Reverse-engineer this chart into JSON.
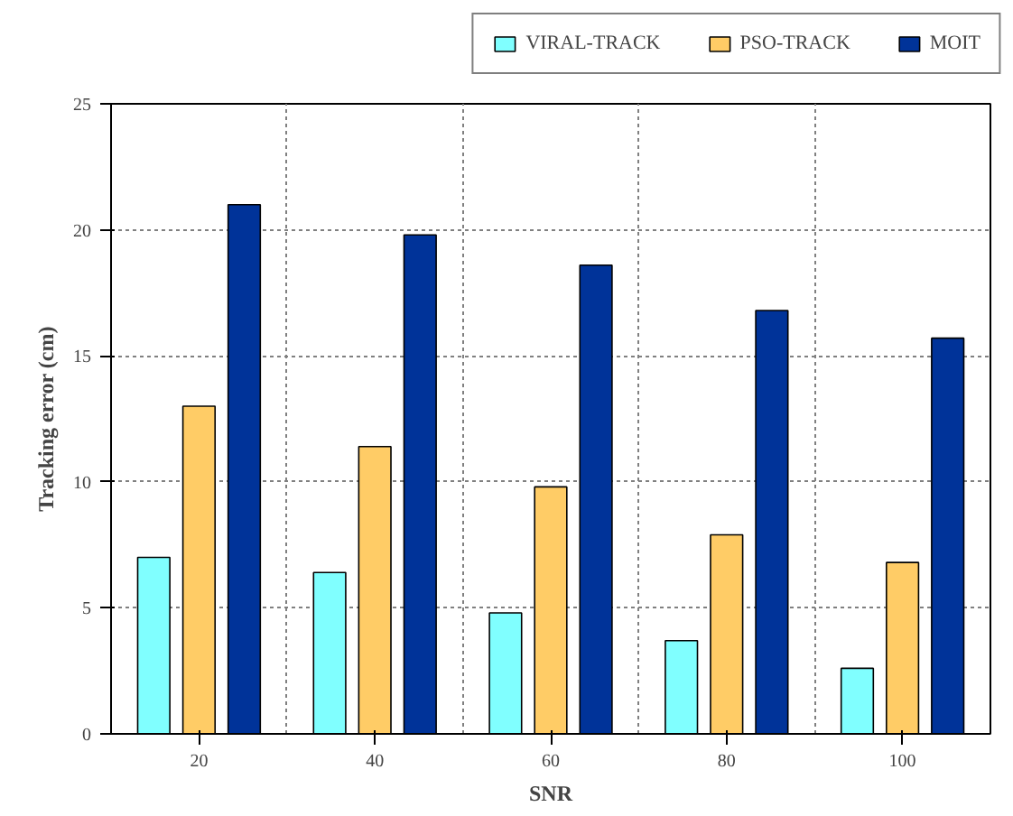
{
  "chart_data": {
    "type": "bar",
    "xlabel": "SNR",
    "ylabel": "Tracking error (cm)",
    "categories": [
      "20",
      "40",
      "60",
      "80",
      "100"
    ],
    "series": [
      {
        "name": "VIRAL-TRACK",
        "color": "#80ffff",
        "values": [
          7.0,
          6.4,
          4.8,
          3.7,
          2.6
        ]
      },
      {
        "name": "PSO-TRACK",
        "color": "#ffcc66",
        "values": [
          13.0,
          11.4,
          9.8,
          7.9,
          6.8
        ]
      },
      {
        "name": "MOIT",
        "color": "#003399",
        "values": [
          21.0,
          19.8,
          18.6,
          16.8,
          15.7
        ]
      }
    ],
    "ylim": [
      0,
      25
    ],
    "yticks": [
      0,
      5,
      10,
      15,
      20,
      25
    ],
    "grid": true,
    "legend": "top right"
  }
}
